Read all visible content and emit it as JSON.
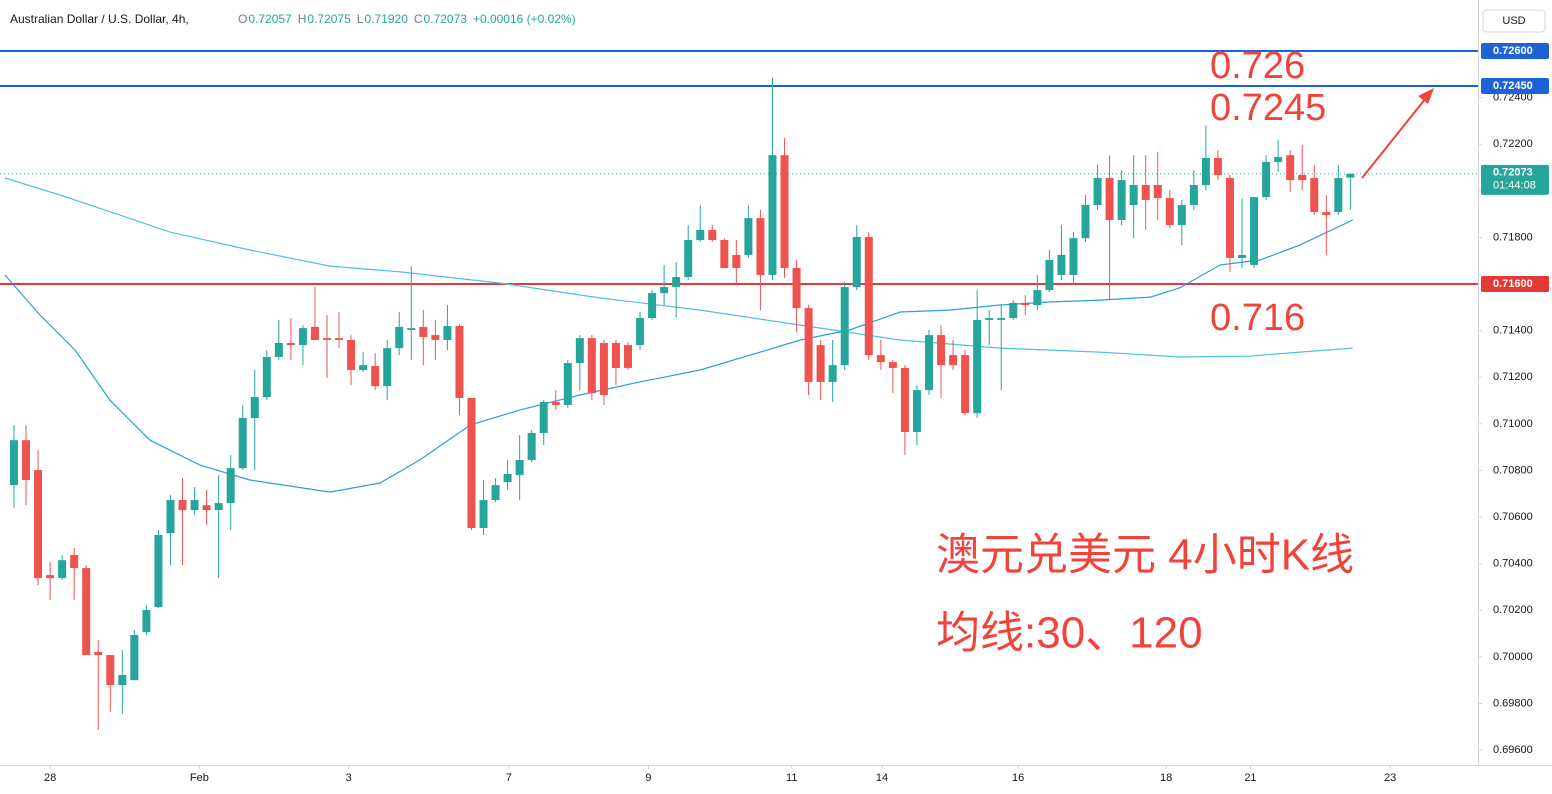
{
  "chart_data": {
    "type": "candlestick",
    "symbol": "Australian Dollar / U.S. Dollar, 4h,",
    "legend": [
      {
        "key": "O",
        "value": "0.72057"
      },
      {
        "key": "H",
        "value": "0.72075"
      },
      {
        "key": "L",
        "value": "0.71920"
      },
      {
        "key": "C",
        "value": "0.72073"
      }
    ],
    "change": "+0.00016 (+0.02%)",
    "currency": "USD",
    "up_color": "#26a69a",
    "down_color": "#ef5350",
    "open": [
      0.70737,
      0.7093,
      0.70802,
      0.70351,
      0.70338,
      0.70437,
      0.70381,
      0.70021,
      0.70008,
      0.69879,
      0.699,
      0.70106,
      0.70214,
      0.70531,
      0.70673,
      0.7063,
      0.70651,
      0.7063,
      0.7066,
      0.7081,
      0.71025,
      0.71115,
      0.71287,
      0.71347,
      0.71338,
      0.71416,
      0.71368,
      0.71368,
      0.7136,
      0.71231,
      0.71248,
      0.71162,
      0.71325,
      0.71403,
      0.71416,
      0.71381,
      0.7136,
      0.7142,
      0.71111,
      0.70553,
      0.70673,
      0.7075,
      0.7078,
      0.70845,
      0.70961,
      0.71094,
      0.71081,
      0.71261,
      0.71368,
      0.71347,
      0.71347,
      0.71338,
      0.71338,
      0.71454,
      0.71561,
      0.71587,
      0.7163,
      0.71789,
      0.71832,
      0.71789,
      0.71725,
      0.71725,
      0.71883,
      0.71639,
      0.72153,
      0.71669,
      0.71497,
      0.71338,
      0.7118,
      0.71252,
      0.71587,
      0.71802,
      0.71295,
      0.71265,
      0.7124,
      0.70965,
      0.71145,
      0.71381,
      0.71295,
      0.71295,
      0.71046,
      0.71446,
      0.71446,
      0.71454,
      0.71519,
      0.7151,
      0.71574,
      0.71639,
      0.71639,
      0.71797,
      0.71939,
      0.72055,
      0.71875,
      0.71939,
      0.72025,
      0.72025,
      0.71969,
      0.71853,
      0.71939,
      0.72025,
      0.72141,
      0.72055,
      0.71712,
      0.71682,
      0.71973,
      0.72124,
      0.72153,
      0.72068,
      0.72055,
      0.71909,
      0.71909,
      0.72057
    ],
    "high": [
      0.70995,
      0.70995,
      0.70888,
      0.70407,
      0.70437,
      0.70467,
      0.70394,
      0.70072,
      0.70008,
      0.70029,
      0.70115,
      0.70222,
      0.70544,
      0.70694,
      0.70767,
      0.70729,
      0.70716,
      0.7078,
      0.70866,
      0.71081,
      0.71231,
      0.71317,
      0.71446,
      0.71454,
      0.71424,
      0.71587,
      0.71467,
      0.7148,
      0.71381,
      0.71308,
      0.71304,
      0.7136,
      0.7148,
      0.71677,
      0.71488,
      0.71446,
      0.7151,
      0.71428,
      0.71111,
      0.70759,
      0.70767,
      0.70845,
      0.70952,
      0.70973,
      0.71102,
      0.71145,
      0.71274,
      0.71381,
      0.71381,
      0.7136,
      0.7136,
      0.71351,
      0.7148,
      0.71574,
      0.71682,
      0.71695,
      0.71853,
      0.71939,
      0.71853,
      0.71797,
      0.71789,
      0.71939,
      0.71918,
      0.72486,
      0.72227,
      0.71703,
      0.7151,
      0.7136,
      0.7136,
      0.71609,
      0.71853,
      0.71823,
      0.7136,
      0.71274,
      0.71252,
      0.71167,
      0.71403,
      0.71424,
      0.7136,
      0.71317,
      0.71574,
      0.71488,
      0.7151,
      0.71531,
      0.71553,
      0.71639,
      0.71746,
      0.71853,
      0.71823,
      0.71982,
      0.72111,
      0.72153,
      0.72089,
      0.72153,
      0.72153,
      0.72167,
      0.72003,
      0.71961,
      0.72089,
      0.72282,
      0.72175,
      0.72068,
      0.71969,
      0.71973,
      0.72153,
      0.72218,
      0.72175,
      0.72197,
      0.72111,
      0.71982,
      0.72111,
      0.72075
    ],
    "low": [
      0.70639,
      0.70651,
      0.70308,
      0.70244,
      0.7033,
      0.70244,
      0.70008,
      0.69686,
      0.69763,
      0.69755,
      0.699,
      0.70094,
      0.70209,
      0.70394,
      0.70394,
      0.70609,
      0.70566,
      0.70338,
      0.70544,
      0.70802,
      0.70802,
      0.71102,
      0.71274,
      0.71274,
      0.71252,
      0.7136,
      0.71197,
      0.71325,
      0.71167,
      0.71222,
      0.71145,
      0.71102,
      0.71295,
      0.71274,
      0.71252,
      0.71274,
      0.71317,
      0.71038,
      0.70544,
      0.70523,
      0.70664,
      0.70716,
      0.70673,
      0.70836,
      0.70909,
      0.71059,
      0.71068,
      0.71145,
      0.71102,
      0.71081,
      0.71167,
      0.71231,
      0.71317,
      0.71446,
      0.7151,
      0.71458,
      0.71617,
      0.7178,
      0.7178,
      0.71669,
      0.71596,
      0.71712,
      0.71488,
      0.71617,
      0.71626,
      0.71395,
      0.71124,
      0.71102,
      0.71094,
      0.71231,
      0.71574,
      0.71274,
      0.71231,
      0.71132,
      0.70866,
      0.70909,
      0.71124,
      0.71111,
      0.71231,
      0.71038,
      0.71025,
      0.71338,
      0.71145,
      0.71446,
      0.71467,
      0.71488,
      0.71566,
      0.71617,
      0.71596,
      0.7178,
      0.71918,
      0.71531,
      0.71853,
      0.71797,
      0.71832,
      0.71875,
      0.7184,
      0.71767,
      0.71918,
      0.72003,
      0.72046,
      0.71652,
      0.71669,
      0.71669,
      0.71961,
      0.72081,
      0.71995,
      0.72003,
      0.71896,
      0.71725,
      0.71896,
      0.7192
    ],
    "close": [
      0.7093,
      0.70759,
      0.70338,
      0.70338,
      0.70415,
      0.70381,
      0.70008,
      0.70008,
      0.69879,
      0.69922,
      0.70094,
      0.70201,
      0.70523,
      0.70673,
      0.7063,
      0.70673,
      0.7063,
      0.7066,
      0.7081,
      0.71025,
      0.71115,
      0.71287,
      0.71347,
      0.71338,
      0.71411,
      0.7136,
      0.7136,
      0.7136,
      0.71231,
      0.71252,
      0.71162,
      0.71325,
      0.71416,
      0.71411,
      0.71373,
      0.7136,
      0.7142,
      0.71111,
      0.70553,
      0.70673,
      0.70737,
      0.70785,
      0.70845,
      0.70961,
      0.71094,
      0.71081,
      0.71261,
      0.71368,
      0.71132,
      0.71124,
      0.7124,
      0.7124,
      0.71454,
      0.71561,
      0.71587,
      0.7163,
      0.71789,
      0.71832,
      0.71789,
      0.71669,
      0.71669,
      0.71883,
      0.71639,
      0.72153,
      0.71669,
      0.71497,
      0.7118,
      0.7118,
      0.71252,
      0.71587,
      0.71802,
      0.71295,
      0.71265,
      0.7124,
      0.70965,
      0.71145,
      0.71381,
      0.71252,
      0.71252,
      0.71046,
      0.71446,
      0.71454,
      0.71454,
      0.71519,
      0.7151,
      0.71574,
      0.71703,
      0.71725,
      0.71797,
      0.71939,
      0.72055,
      0.71875,
      0.72046,
      0.72025,
      0.71961,
      0.71969,
      0.71853,
      0.71939,
      0.72025,
      0.72141,
      0.72068,
      0.71712,
      0.71725,
      0.71973,
      0.72124,
      0.72145,
      0.72046,
      0.72046,
      0.71909,
      0.71896,
      0.72055,
      0.72073
    ],
    "moving_averages": [
      {
        "color": "#2b9de0",
        "x": [
          -0.75,
          2.16,
          5.07,
          7.97,
          11.3,
          15.45,
          19.6,
          26.25,
          30.4,
          33.7,
          37.9,
          42.0,
          47.0,
          52.0,
          57.0,
          62.0,
          65.3,
          69.4,
          73.6,
          77.7,
          81.9,
          86.0,
          90.2,
          94.4,
          96.8,
          100.2,
          103.5,
          106.8,
          111.2
        ],
        "values": [
          0.71639,
          0.71467,
          0.71317,
          0.71102,
          0.7093,
          0.70823,
          0.70759,
          0.70707,
          0.70746,
          0.70845,
          0.70995,
          0.71059,
          0.71124,
          0.7118,
          0.71231,
          0.71308,
          0.7136,
          0.71403,
          0.7148,
          0.71488,
          0.7151,
          0.71523,
          0.71531,
          0.71544,
          0.71583,
          0.71682,
          0.71703,
          0.71767,
          0.71875
        ]
      },
      {
        "color": "#4fc0e8",
        "x": [
          -0.75,
          3.82,
          8.8,
          12.95,
          19.6,
          26.25,
          32.1,
          40.4,
          48.7,
          57.0,
          65.3,
          73.6,
          81.9,
          90.2,
          96.8,
          102.7,
          106.8,
          111.2
        ],
        "values": [
          0.72055,
          0.71982,
          0.71896,
          0.71823,
          0.71746,
          0.71677,
          0.71652,
          0.71604,
          0.7154,
          0.71488,
          0.71424,
          0.7136,
          0.71325,
          0.71308,
          0.71287,
          0.71291,
          0.71308,
          0.71325
        ]
      }
    ],
    "xlim": [
      -1.16,
      121.6
    ],
    "xticks": [
      {
        "value": 3,
        "label": "28"
      },
      {
        "value": 15.4,
        "label": "Feb"
      },
      {
        "value": 27.8,
        "label": "3"
      },
      {
        "value": 41.1,
        "label": "7"
      },
      {
        "value": 52.7,
        "label": "9"
      },
      {
        "value": 64.6,
        "label": "11"
      },
      {
        "value": 72.1,
        "label": "14"
      },
      {
        "value": 83.4,
        "label": "16"
      },
      {
        "value": 95.7,
        "label": "18"
      },
      {
        "value": 102.7,
        "label": "21"
      },
      {
        "value": 114.3,
        "label": "23"
      }
    ],
    "ylim": [
      0.69536,
      0.72819
    ],
    "yticks": [
      {
        "value": 0.696,
        "label": "0.69600"
      },
      {
        "value": 0.698,
        "label": "0.69800"
      },
      {
        "value": 0.7,
        "label": "0.70000"
      },
      {
        "value": 0.702,
        "label": "0.70200"
      },
      {
        "value": 0.704,
        "label": "0.70400"
      },
      {
        "value": 0.706,
        "label": "0.70600"
      },
      {
        "value": 0.708,
        "label": "0.70800"
      },
      {
        "value": 0.71,
        "label": "0.71000"
      },
      {
        "value": 0.712,
        "label": "0.71200"
      },
      {
        "value": 0.714,
        "label": "0.71400"
      },
      {
        "value": 0.716,
        "label": "0.71600"
      },
      {
        "value": 0.718,
        "label": "0.71800"
      },
      {
        "value": 0.72,
        "label": "0.72000"
      },
      {
        "value": 0.722,
        "label": "0.72200"
      },
      {
        "value": 0.724,
        "label": "0.72400"
      }
    ],
    "grid": false,
    "hlines": [
      {
        "value": 0.726,
        "label": "0.72600",
        "color": "#1e63d6"
      },
      {
        "value": 0.7245,
        "label": "0.72450",
        "color": "#1e63d6"
      },
      {
        "value": 0.716,
        "label": "0.71600",
        "color": "#e53935"
      }
    ],
    "last_price": {
      "value": 0.72073,
      "label": "0.72073",
      "countdown": "01:44:08",
      "color": "#26a69a"
    },
    "annotations": [
      "0.726",
      "0.7245",
      "0.716",
      "澳元兑美元 4小时K线",
      "均线:30、120"
    ],
    "annotation_color": "#f0433a"
  }
}
